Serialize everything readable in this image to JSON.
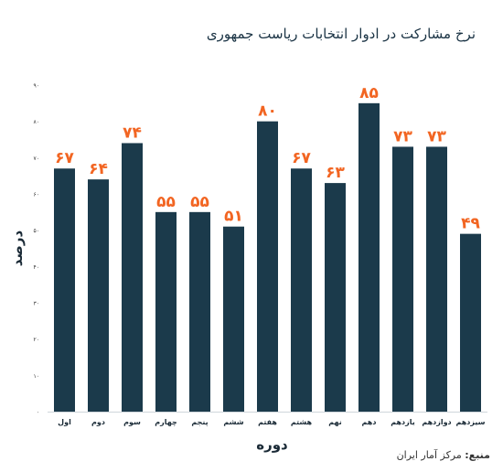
{
  "title": "نرخ مشارکت در ادوار انتخابات ریاست جمهوری",
  "source": {
    "label": "منبع:",
    "text": "مرکز آمار ایران"
  },
  "colors": {
    "bar": "#1b3a4b",
    "value_label": "#f26522",
    "axis_text": "#1a2a36"
  },
  "chart_data": {
    "type": "bar",
    "title": "نرخ مشارکت در ادوار انتخابات ریاست جمهوری",
    "xlabel": "دوره",
    "ylabel": "درصد",
    "ylim": [
      0,
      90
    ],
    "yticks": [
      0,
      10,
      20,
      30,
      40,
      50,
      60,
      70,
      80,
      90
    ],
    "ytick_labels": [
      "۰",
      "۱۰",
      "۲۰",
      "۳۰",
      "۴۰",
      "۵۰",
      "۶۰",
      "۷۰",
      "۸۰",
      "۹۰"
    ],
    "grid": false,
    "categories": [
      "اول",
      "دوم",
      "سوم",
      "چهارم",
      "پنجم",
      "ششم",
      "هفتم",
      "هشتم",
      "نهم",
      "دهم",
      "یازدهم",
      "دوازدهم",
      "سیزدهم"
    ],
    "values": [
      67,
      64,
      74,
      55,
      55,
      51,
      80,
      67,
      63,
      85,
      73,
      73,
      49
    ],
    "value_labels": [
      "۶۷",
      "۶۴",
      "۷۴",
      "۵۵",
      "۵۵",
      "۵۱",
      "۸۰",
      "۶۷",
      "۶۳",
      "۸۵",
      "۷۳",
      "۷۳",
      "۴۹"
    ]
  }
}
